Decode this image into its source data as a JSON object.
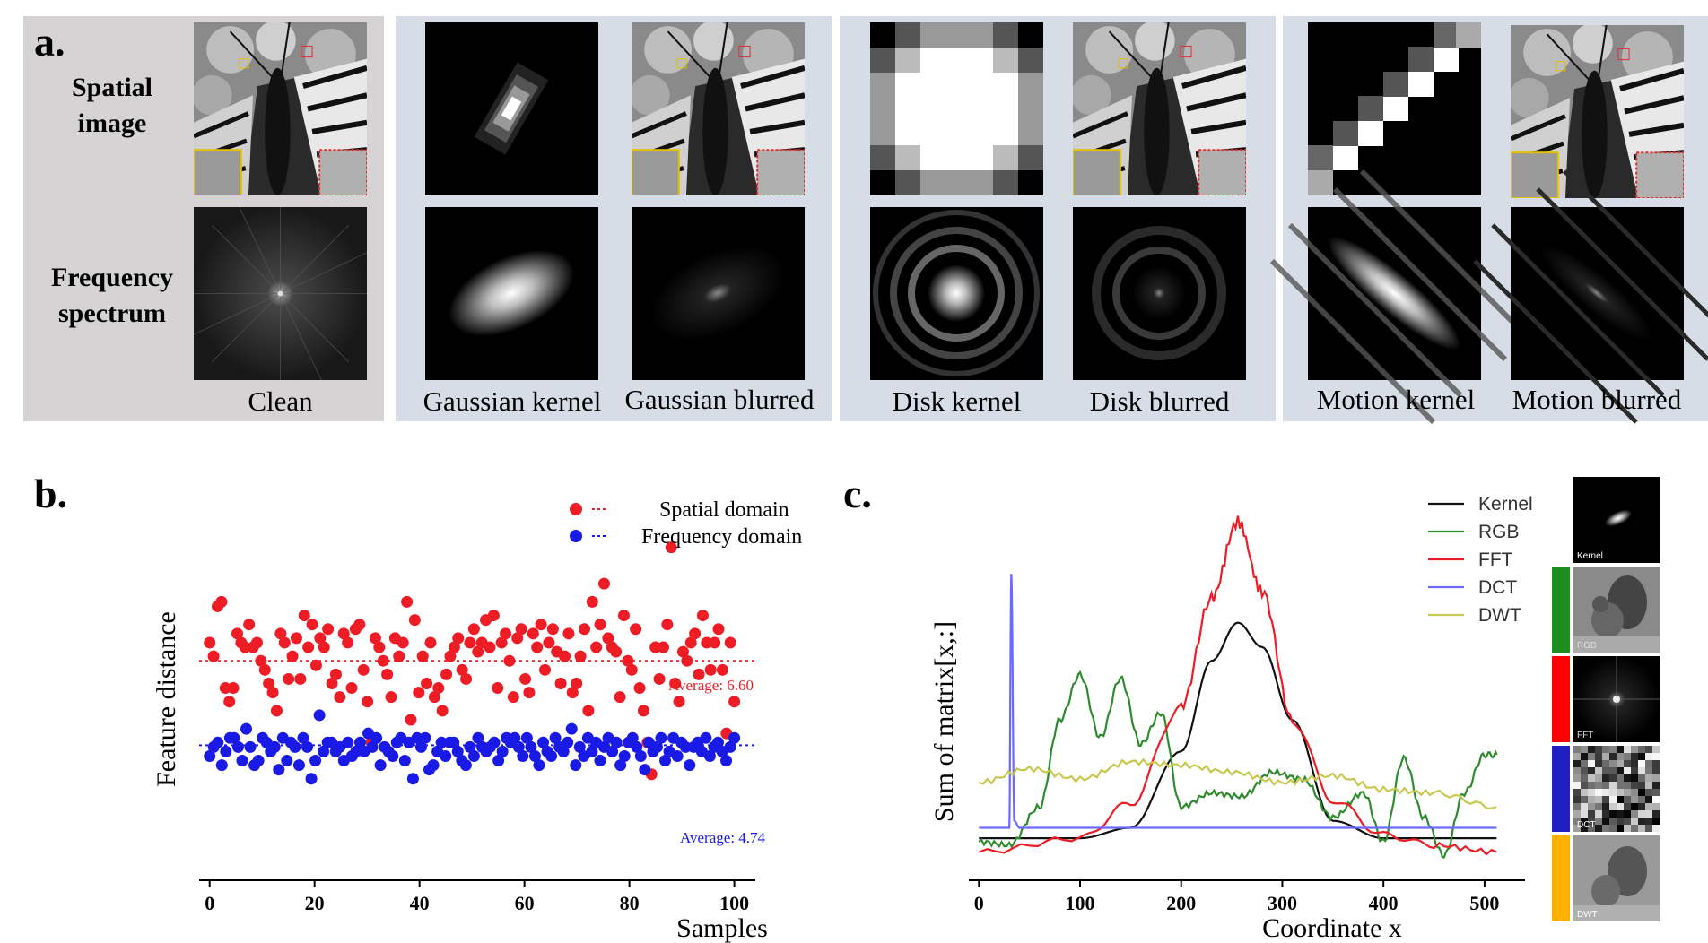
{
  "panel_a": {
    "label": "a.",
    "row_spatial": [
      "Spatial",
      "image"
    ],
    "row_frequency": [
      "Frequency",
      "spectrum"
    ],
    "captions": {
      "clean": "Clean",
      "gaussian_kernel": "Gaussian kernel",
      "gaussian_blurred": "Gaussian blurred",
      "disk_kernel": "Disk kernel",
      "disk_blurred": "Disk blurred",
      "motion_kernel": "Motion kernel",
      "motion_blurred": "Motion blurred"
    }
  },
  "panel_b": {
    "label": "b.",
    "legend_spatial": "Spatial domain",
    "legend_frequency": "Frequency domain",
    "avg_spatial": "Average: 6.60",
    "avg_frequency": "Average: 4.74",
    "colors": {
      "spatial": "#ee1c24",
      "frequency": "#1a1ae6"
    }
  },
  "panel_c": {
    "label": "c.",
    "legend": [
      "Kernel",
      "RGB",
      "FFT",
      "DCT",
      "DWT"
    ],
    "colors": {
      "Kernel": "#111111",
      "RGB": "#2e8b2e",
      "FFT": "#ee1c24",
      "DCT": "#6a6aff",
      "DWT": "#c8c850"
    },
    "thumb_labels": [
      "Kernel",
      "RGB",
      "FFT",
      "DCT",
      "DWT"
    ],
    "bar_colors": [
      "#1e8c1e",
      "#ff0000",
      "#2020c0",
      "#ffb000"
    ]
  },
  "chart_data": [
    {
      "type": "scatter",
      "title": "",
      "xlabel": "Samples",
      "ylabel": "Feature distance",
      "xlim": [
        -2,
        104
      ],
      "ylim": [
        2,
        10.2
      ],
      "xticks": [
        "0",
        "20",
        "40",
        "60",
        "80",
        "100"
      ],
      "series": [
        {
          "name": "Spatial domain",
          "average": 6.6,
          "values": [
            7.0,
            6.7,
            7.8,
            7.9,
            6.0,
            5.7,
            6.0,
            7.2,
            7.0,
            6.9,
            7.4,
            6.9,
            7.0,
            6.6,
            6.4,
            6.1,
            5.9,
            5.5,
            7.2,
            7.0,
            6.2,
            6.7,
            7.1,
            6.2,
            7.6,
            6.9,
            7.4,
            6.5,
            7.1,
            6.9,
            7.3,
            6.1,
            6.3,
            5.8,
            7.2,
            7.0,
            6.0,
            7.3,
            7.4,
            6.4,
            5.7,
            4.8,
            7.1,
            6.9,
            6.6,
            6.3,
            5.8,
            7.1,
            6.7,
            7.0,
            7.9,
            5.3,
            7.5,
            5.9,
            6.7,
            6.1,
            7.0,
            5.8,
            6.0,
            5.5,
            6.3,
            6.7,
            6.9,
            7.1,
            6.4,
            6.2,
            7.0,
            7.3,
            6.8,
            7.0,
            7.5,
            6.9,
            7.6,
            6.0,
            7.0,
            7.2,
            6.6,
            5.8,
            7.1,
            7.3,
            6.2,
            5.9,
            7.2,
            6.9,
            7.4,
            6.4,
            7.0,
            7.3,
            6.8,
            6.1,
            6.7,
            7.2,
            5.9,
            6.1,
            6.7,
            7.3,
            5.5,
            7.9,
            6.9,
            7.4,
            8.3,
            7.1,
            6.9,
            6.8,
            5.8,
            7.6,
            6.6,
            6.4,
            7.3,
            6.0,
            5.5,
            4.8,
            4.1,
            6.9,
            6.2,
            6.9,
            7.4,
            9.1,
            6.1,
            5.7,
            6.8,
            6.6,
            7.0,
            7.2,
            6.3,
            7.6,
            7.0,
            6.4,
            7.0,
            7.3,
            6.4,
            5.0,
            7.0,
            5.7
          ]
        },
        {
          "name": "Frequency domain",
          "average": 4.74,
          "values": [
            4.5,
            4.7,
            4.8,
            4.3,
            4.6,
            4.9,
            4.9,
            4.7,
            4.4,
            5.1,
            4.7,
            4.3,
            4.4,
            4.9,
            4.8,
            4.6,
            4.7,
            4.2,
            4.9,
            4.4,
            4.8,
            4.7,
            4.3,
            4.9,
            4.7,
            4.0,
            4.4,
            5.4,
            4.6,
            4.8,
            4.8,
            4.6,
            4.7,
            4.4,
            4.8,
            4.5,
            4.6,
            4.8,
            4.6,
            5.0,
            4.7,
            4.9,
            4.3,
            4.7,
            4.6,
            4.5,
            4.8,
            4.9,
            4.4,
            4.8,
            4.0,
            4.9,
            4.7,
            4.9,
            4.2,
            4.3,
            4.6,
            4.8,
            4.5,
            4.8,
            4.8,
            4.6,
            4.4,
            4.3,
            4.7,
            4.5,
            4.9,
            4.7,
            4.6,
            4.7,
            4.8,
            4.4,
            4.6,
            4.9,
            4.8,
            4.9,
            4.7,
            4.5,
            4.9,
            4.7,
            4.5,
            4.3,
            4.8,
            4.6,
            4.5,
            4.9,
            4.7,
            4.6,
            4.8,
            5.1,
            4.3,
            4.7,
            4.5,
            4.9,
            4.6,
            4.8,
            4.4,
            4.7,
            4.9,
            4.6,
            4.8,
            4.3,
            4.5,
            4.8,
            4.9,
            4.7,
            4.5,
            4.2,
            4.8,
            4.6,
            4.7,
            4.9,
            4.4,
            4.6,
            4.9,
            4.5,
            4.8,
            4.7,
            4.3,
            4.7,
            4.8,
            4.6,
            4.9,
            4.5,
            4.7,
            4.8,
            4.6,
            4.4,
            4.7,
            4.9
          ]
        }
      ]
    },
    {
      "type": "line",
      "title": "",
      "xlabel": "Coordinate x",
      "ylabel": "Sum of matrix[x,:]",
      "xlim": [
        -10,
        540
      ],
      "ylim": [
        -0.5,
        10.2
      ],
      "xticks": [
        "0",
        "100",
        "200",
        "300",
        "400",
        "500"
      ],
      "series": [
        {
          "name": "Kernel",
          "x": [
            0,
            100,
            150,
            200,
            230,
            256,
            280,
            310,
            350,
            400,
            450,
            512
          ],
          "y": [
            0.4,
            0.4,
            0.7,
            2.9,
            5.5,
            6.6,
            5.9,
            3.8,
            0.9,
            0.4,
            0.4,
            0.4
          ]
        },
        {
          "name": "RGB",
          "x": [
            0,
            30,
            60,
            80,
            100,
            120,
            140,
            160,
            180,
            200,
            230,
            260,
            290,
            320,
            350,
            380,
            400,
            420,
            440,
            460,
            480,
            500,
            512
          ],
          "y": [
            0.3,
            0.2,
            1.3,
            3.8,
            5.1,
            3.3,
            5.0,
            3.1,
            4.0,
            1.3,
            1.7,
            1.6,
            2.3,
            2.1,
            1.0,
            1.7,
            0.3,
            2.7,
            1.0,
            -0.1,
            1.7,
            2.8,
            2.8
          ]
        },
        {
          "name": "FFT",
          "x": [
            0,
            100,
            150,
            200,
            230,
            256,
            280,
            310,
            350,
            400,
            450,
            512
          ],
          "y": [
            0.0,
            0.4,
            1.4,
            4.2,
            7.3,
            9.5,
            7.5,
            3.8,
            1.5,
            0.5,
            0.2,
            0.0
          ]
        },
        {
          "name": "DCT",
          "x": [
            0,
            30,
            32,
            35,
            40,
            60,
            512
          ],
          "y": [
            0.7,
            0.7,
            8.0,
            0.9,
            0.7,
            0.7,
            0.7
          ]
        },
        {
          "name": "DWT",
          "x": [
            0,
            50,
            100,
            150,
            200,
            250,
            300,
            350,
            400,
            450,
            512
          ],
          "y": [
            2.0,
            2.4,
            2.1,
            2.6,
            2.5,
            2.3,
            2.0,
            2.2,
            1.8,
            1.7,
            1.3
          ]
        }
      ]
    }
  ]
}
